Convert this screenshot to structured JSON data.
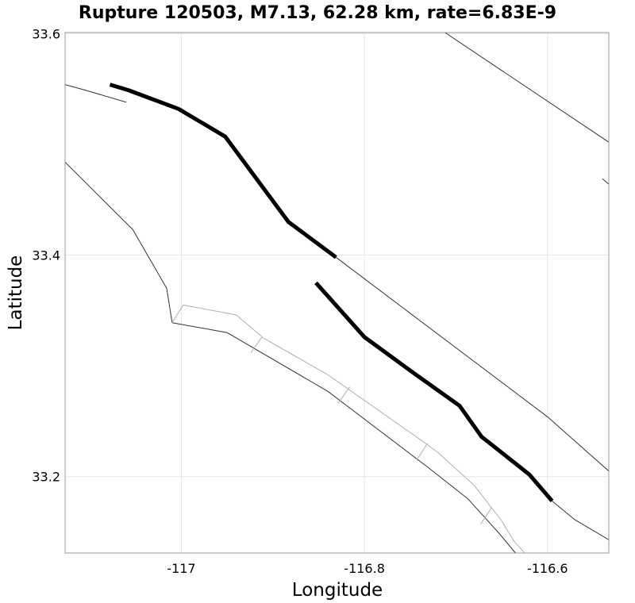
{
  "chart_data": {
    "type": "map",
    "title": "Rupture 120503, M7.13, 62.28 km, rate=6.83E-9",
    "xlabel": "Longitude",
    "ylabel": "Latitude",
    "xlim": [
      -117.127,
      -116.533
    ],
    "ylim": [
      33.131,
      33.601
    ],
    "grid": true,
    "x_ticks": [
      {
        "value": -117.0,
        "label": "-117"
      },
      {
        "value": -116.8,
        "label": "-116.8"
      },
      {
        "value": -116.6,
        "label": "-116.6"
      }
    ],
    "y_ticks": [
      {
        "value": 33.2,
        "label": "33.2"
      },
      {
        "value": 33.4,
        "label": "33.4"
      },
      {
        "value": 33.6,
        "label": "33.6"
      }
    ],
    "colors": {
      "rupture": "#000000",
      "fault_trace": "#333333",
      "subsection_outline": "#b0b0b0",
      "grid": "#e6e6e6",
      "frame": "#999999"
    },
    "series": [
      {
        "name": "rupture-segment-north",
        "style": "rupture",
        "points": [
          [
            -117.078,
            33.554
          ],
          [
            -117.058,
            33.549
          ],
          [
            -117.003,
            33.532
          ],
          [
            -116.952,
            33.507
          ],
          [
            -116.883,
            33.43
          ],
          [
            -116.831,
            33.398
          ]
        ]
      },
      {
        "name": "rupture-segment-south",
        "style": "rupture",
        "points": [
          [
            -116.853,
            33.375
          ],
          [
            -116.8,
            33.326
          ],
          [
            -116.747,
            33.294
          ],
          [
            -116.696,
            33.264
          ],
          [
            -116.672,
            33.236
          ],
          [
            -116.62,
            33.202
          ],
          [
            -116.595,
            33.178
          ]
        ]
      },
      {
        "name": "fault-trace-west",
        "style": "fault_trace",
        "points": [
          [
            -117.127,
            33.554
          ],
          [
            -117.105,
            33.549
          ],
          [
            -117.06,
            33.538
          ]
        ]
      },
      {
        "name": "fault-trace-southwest",
        "style": "fault_trace",
        "points": [
          [
            -117.127,
            33.484
          ],
          [
            -117.053,
            33.423
          ],
          [
            -117.016,
            33.37
          ],
          [
            -117.01,
            33.339
          ],
          [
            -116.95,
            33.33
          ],
          [
            -116.84,
            33.277
          ],
          [
            -116.73,
            33.208
          ],
          [
            -116.687,
            33.18
          ],
          [
            -116.652,
            33.148
          ],
          [
            -116.635,
            33.131
          ]
        ]
      },
      {
        "name": "fault-trace-central",
        "style": "fault_trace",
        "points": [
          [
            -116.831,
            33.398
          ],
          [
            -116.6,
            33.254
          ],
          [
            -116.533,
            33.205
          ]
        ]
      },
      {
        "name": "fault-trace-east",
        "style": "fault_trace",
        "points": [
          [
            -116.712,
            33.601
          ],
          [
            -116.533,
            33.502
          ]
        ]
      },
      {
        "name": "fault-trace-east-fragment",
        "style": "fault_trace",
        "points": [
          [
            -116.54,
            33.469
          ],
          [
            -116.533,
            33.464
          ]
        ]
      },
      {
        "name": "fault-trace-southeast-tail",
        "style": "fault_trace",
        "points": [
          [
            -116.595,
            33.178
          ],
          [
            -116.57,
            33.161
          ],
          [
            -116.533,
            33.143
          ]
        ]
      },
      {
        "name": "subsection-outline",
        "style": "subsection_outline",
        "points": [
          [
            -117.01,
            33.339
          ],
          [
            -116.998,
            33.355
          ],
          [
            -116.94,
            33.346
          ],
          [
            -116.91,
            33.325
          ],
          [
            -116.84,
            33.292
          ],
          [
            -116.74,
            33.234
          ],
          [
            -116.72,
            33.222
          ],
          [
            -116.68,
            33.192
          ],
          [
            -116.65,
            33.16
          ],
          [
            -116.637,
            33.142
          ],
          [
            -116.625,
            33.131
          ]
        ]
      },
      {
        "name": "subsection-divider-1",
        "style": "subsection_outline",
        "points": [
          [
            -116.912,
            33.326
          ],
          [
            -116.924,
            33.312
          ]
        ]
      },
      {
        "name": "subsection-divider-2",
        "style": "subsection_outline",
        "points": [
          [
            -116.816,
            33.281
          ],
          [
            -116.829,
            33.266
          ]
        ]
      },
      {
        "name": "subsection-divider-3",
        "style": "subsection_outline",
        "points": [
          [
            -116.731,
            33.23
          ],
          [
            -116.743,
            33.215
          ]
        ]
      },
      {
        "name": "subsection-divider-4",
        "style": "subsection_outline",
        "points": [
          [
            -116.661,
            33.172
          ],
          [
            -116.673,
            33.157
          ]
        ]
      }
    ]
  }
}
